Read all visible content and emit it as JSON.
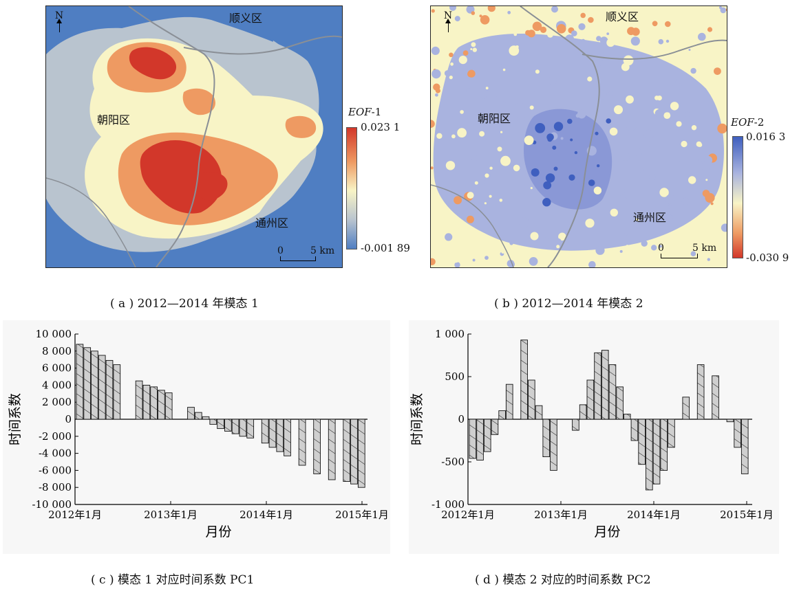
{
  "panel_a": {
    "north": "N",
    "districts": [
      "顺义区",
      "朝阳区",
      "通州区"
    ],
    "scale": {
      "zero": "0",
      "end": "5 km"
    },
    "legend": {
      "title_italic": "EOF",
      "title_suffix": "-1",
      "max": "0.023 1",
      "min": "-0.001 89"
    },
    "caption": "( a ) 2012—2014 年模态 1"
  },
  "panel_b": {
    "north": "N",
    "districts": [
      "顺义区",
      "朝阳区",
      "通州区"
    ],
    "scale": {
      "zero": "0",
      "end": "5 km"
    },
    "legend": {
      "title_italic": "EOF",
      "title_suffix": "-2",
      "max": "0.016 3",
      "min": "-0.030 9"
    },
    "caption": "( b ) 2012—2014 年模态 2"
  },
  "colors": {
    "dark_red": "#d2372a",
    "orange": "#ee9a62",
    "cream": "#f8f4c6",
    "gray_blue": "#b9c4cf",
    "blue": "#4f7ec2",
    "indigo": "#3f5fbf",
    "lavender": "#a9b3df"
  },
  "chart_data": [
    {
      "type": "bar",
      "caption": "( c ) 模态 1 对应时间系数 PC1",
      "ylabel": "时间系数",
      "xlabel": "月份",
      "ylim": [
        -10000,
        10000
      ],
      "yticks": [
        10000,
        8000,
        6000,
        4000,
        2000,
        0,
        -2000,
        -4000,
        -6000,
        -8000,
        -10000
      ],
      "ytick_labels": [
        "10 000",
        "8 000",
        "6 000",
        "4 000",
        "2 000",
        "0",
        "-2 000",
        "-4 000",
        "-6 000",
        "-8 000",
        "-10 000"
      ],
      "xticks": [
        {
          "month_index": 0,
          "label": "2012年1月"
        },
        {
          "month_index": 12,
          "label": "2013年1月"
        },
        {
          "month_index": 24,
          "label": "2014年1月"
        },
        {
          "month_index": 36,
          "label": "2015年1月"
        }
      ],
      "x_month_range": [
        0,
        36
      ],
      "bars": [
        {
          "month_index": 0,
          "value": 8800
        },
        {
          "month_index": 1,
          "value": 8400
        },
        {
          "month_index": 2,
          "value": 8000
        },
        {
          "month_index": 3,
          "value": 7500
        },
        {
          "month_index": 4,
          "value": 6900
        },
        {
          "month_index": 5,
          "value": 6400
        },
        {
          "month_index": 8,
          "value": 4500
        },
        {
          "month_index": 9,
          "value": 4000
        },
        {
          "month_index": 10,
          "value": 3800
        },
        {
          "month_index": 11,
          "value": 3400
        },
        {
          "month_index": 12,
          "value": 3100
        },
        {
          "month_index": 15,
          "value": 1400
        },
        {
          "month_index": 16,
          "value": 800
        },
        {
          "month_index": 17,
          "value": 300
        },
        {
          "month_index": 18,
          "value": -600
        },
        {
          "month_index": 19,
          "value": -1100
        },
        {
          "month_index": 20,
          "value": -1400
        },
        {
          "month_index": 21,
          "value": -1700
        },
        {
          "month_index": 22,
          "value": -2000
        },
        {
          "month_index": 23,
          "value": -2200
        },
        {
          "month_index": 25,
          "value": -2800
        },
        {
          "month_index": 26,
          "value": -3300
        },
        {
          "month_index": 27,
          "value": -3800
        },
        {
          "month_index": 28,
          "value": -4300
        },
        {
          "month_index": 30,
          "value": -5400
        },
        {
          "month_index": 32,
          "value": -6400
        },
        {
          "month_index": 34,
          "value": -7100
        },
        {
          "month_index": 36,
          "value": -7300
        },
        {
          "month_index": 37,
          "value": -7600
        },
        {
          "month_index": 38,
          "value": -8000
        }
      ]
    },
    {
      "type": "bar",
      "caption": "( d ) 模态 2 对应的时间系数 PC2",
      "ylabel": "时间系数",
      "xlabel": "月份",
      "ylim": [
        -1000,
        1000
      ],
      "yticks": [
        1000,
        500,
        0,
        -500,
        -1000
      ],
      "ytick_labels": [
        "1 000",
        "500",
        "0",
        "-500",
        "-1 000"
      ],
      "xticks": [
        {
          "month_index": 0,
          "label": "2012年1月"
        },
        {
          "month_index": 12,
          "label": "2013年1月"
        },
        {
          "month_index": 24,
          "label": "2014年1月"
        },
        {
          "month_index": 36,
          "label": "2015年1月"
        }
      ],
      "x_month_range": [
        0,
        36
      ],
      "bars": [
        {
          "month_index": 0,
          "value": -460
        },
        {
          "month_index": 1,
          "value": -480
        },
        {
          "month_index": 2,
          "value": -380
        },
        {
          "month_index": 3,
          "value": -180
        },
        {
          "month_index": 4,
          "value": 100
        },
        {
          "month_index": 5,
          "value": 410
        },
        {
          "month_index": 7,
          "value": 930
        },
        {
          "month_index": 8,
          "value": 460
        },
        {
          "month_index": 9,
          "value": 160
        },
        {
          "month_index": 10,
          "value": -440
        },
        {
          "month_index": 11,
          "value": -600
        },
        {
          "month_index": 14,
          "value": -130
        },
        {
          "month_index": 15,
          "value": 170
        },
        {
          "month_index": 16,
          "value": 460
        },
        {
          "month_index": 17,
          "value": 780
        },
        {
          "month_index": 18,
          "value": 810
        },
        {
          "month_index": 19,
          "value": 640
        },
        {
          "month_index": 20,
          "value": 380
        },
        {
          "month_index": 21,
          "value": 60
        },
        {
          "month_index": 22,
          "value": -250
        },
        {
          "month_index": 23,
          "value": -530
        },
        {
          "month_index": 24,
          "value": -830
        },
        {
          "month_index": 25,
          "value": -760
        },
        {
          "month_index": 26,
          "value": -600
        },
        {
          "month_index": 27,
          "value": -330
        },
        {
          "month_index": 29,
          "value": 260
        },
        {
          "month_index": 31,
          "value": 640
        },
        {
          "month_index": 33,
          "value": 510
        },
        {
          "month_index": 35,
          "value": -30
        },
        {
          "month_index": 36,
          "value": -330
        },
        {
          "month_index": 37,
          "value": -640
        }
      ]
    }
  ]
}
